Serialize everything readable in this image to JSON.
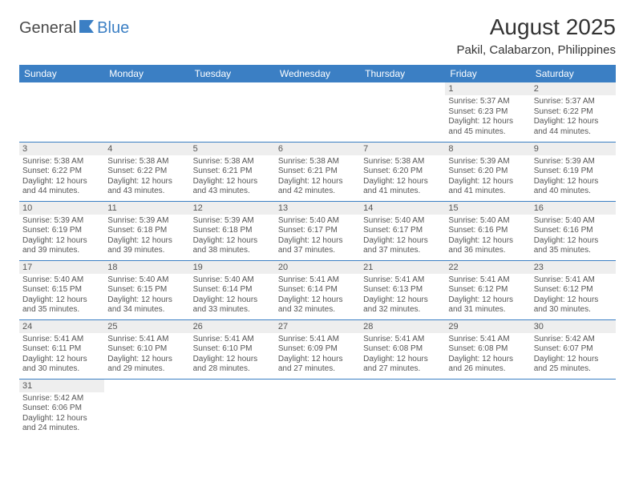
{
  "logo": {
    "part1": "General",
    "part2": "Blue"
  },
  "title": "August 2025",
  "location": "Pakil, Calabarzon, Philippines",
  "colors": {
    "header_bg": "#3b7fc4",
    "header_fg": "#ffffff",
    "daynum_bg": "#eeeeee",
    "border": "#3b7fc4",
    "text": "#555555"
  },
  "weekdays": [
    "Sunday",
    "Monday",
    "Tuesday",
    "Wednesday",
    "Thursday",
    "Friday",
    "Saturday"
  ],
  "weeks": [
    [
      null,
      null,
      null,
      null,
      null,
      {
        "n": "1",
        "sr": "Sunrise: 5:37 AM",
        "ss": "Sunset: 6:23 PM",
        "d1": "Daylight: 12 hours",
        "d2": "and 45 minutes."
      },
      {
        "n": "2",
        "sr": "Sunrise: 5:37 AM",
        "ss": "Sunset: 6:22 PM",
        "d1": "Daylight: 12 hours",
        "d2": "and 44 minutes."
      }
    ],
    [
      {
        "n": "3",
        "sr": "Sunrise: 5:38 AM",
        "ss": "Sunset: 6:22 PM",
        "d1": "Daylight: 12 hours",
        "d2": "and 44 minutes."
      },
      {
        "n": "4",
        "sr": "Sunrise: 5:38 AM",
        "ss": "Sunset: 6:22 PM",
        "d1": "Daylight: 12 hours",
        "d2": "and 43 minutes."
      },
      {
        "n": "5",
        "sr": "Sunrise: 5:38 AM",
        "ss": "Sunset: 6:21 PM",
        "d1": "Daylight: 12 hours",
        "d2": "and 43 minutes."
      },
      {
        "n": "6",
        "sr": "Sunrise: 5:38 AM",
        "ss": "Sunset: 6:21 PM",
        "d1": "Daylight: 12 hours",
        "d2": "and 42 minutes."
      },
      {
        "n": "7",
        "sr": "Sunrise: 5:38 AM",
        "ss": "Sunset: 6:20 PM",
        "d1": "Daylight: 12 hours",
        "d2": "and 41 minutes."
      },
      {
        "n": "8",
        "sr": "Sunrise: 5:39 AM",
        "ss": "Sunset: 6:20 PM",
        "d1": "Daylight: 12 hours",
        "d2": "and 41 minutes."
      },
      {
        "n": "9",
        "sr": "Sunrise: 5:39 AM",
        "ss": "Sunset: 6:19 PM",
        "d1": "Daylight: 12 hours",
        "d2": "and 40 minutes."
      }
    ],
    [
      {
        "n": "10",
        "sr": "Sunrise: 5:39 AM",
        "ss": "Sunset: 6:19 PM",
        "d1": "Daylight: 12 hours",
        "d2": "and 39 minutes."
      },
      {
        "n": "11",
        "sr": "Sunrise: 5:39 AM",
        "ss": "Sunset: 6:18 PM",
        "d1": "Daylight: 12 hours",
        "d2": "and 39 minutes."
      },
      {
        "n": "12",
        "sr": "Sunrise: 5:39 AM",
        "ss": "Sunset: 6:18 PM",
        "d1": "Daylight: 12 hours",
        "d2": "and 38 minutes."
      },
      {
        "n": "13",
        "sr": "Sunrise: 5:40 AM",
        "ss": "Sunset: 6:17 PM",
        "d1": "Daylight: 12 hours",
        "d2": "and 37 minutes."
      },
      {
        "n": "14",
        "sr": "Sunrise: 5:40 AM",
        "ss": "Sunset: 6:17 PM",
        "d1": "Daylight: 12 hours",
        "d2": "and 37 minutes."
      },
      {
        "n": "15",
        "sr": "Sunrise: 5:40 AM",
        "ss": "Sunset: 6:16 PM",
        "d1": "Daylight: 12 hours",
        "d2": "and 36 minutes."
      },
      {
        "n": "16",
        "sr": "Sunrise: 5:40 AM",
        "ss": "Sunset: 6:16 PM",
        "d1": "Daylight: 12 hours",
        "d2": "and 35 minutes."
      }
    ],
    [
      {
        "n": "17",
        "sr": "Sunrise: 5:40 AM",
        "ss": "Sunset: 6:15 PM",
        "d1": "Daylight: 12 hours",
        "d2": "and 35 minutes."
      },
      {
        "n": "18",
        "sr": "Sunrise: 5:40 AM",
        "ss": "Sunset: 6:15 PM",
        "d1": "Daylight: 12 hours",
        "d2": "and 34 minutes."
      },
      {
        "n": "19",
        "sr": "Sunrise: 5:40 AM",
        "ss": "Sunset: 6:14 PM",
        "d1": "Daylight: 12 hours",
        "d2": "and 33 minutes."
      },
      {
        "n": "20",
        "sr": "Sunrise: 5:41 AM",
        "ss": "Sunset: 6:14 PM",
        "d1": "Daylight: 12 hours",
        "d2": "and 32 minutes."
      },
      {
        "n": "21",
        "sr": "Sunrise: 5:41 AM",
        "ss": "Sunset: 6:13 PM",
        "d1": "Daylight: 12 hours",
        "d2": "and 32 minutes."
      },
      {
        "n": "22",
        "sr": "Sunrise: 5:41 AM",
        "ss": "Sunset: 6:12 PM",
        "d1": "Daylight: 12 hours",
        "d2": "and 31 minutes."
      },
      {
        "n": "23",
        "sr": "Sunrise: 5:41 AM",
        "ss": "Sunset: 6:12 PM",
        "d1": "Daylight: 12 hours",
        "d2": "and 30 minutes."
      }
    ],
    [
      {
        "n": "24",
        "sr": "Sunrise: 5:41 AM",
        "ss": "Sunset: 6:11 PM",
        "d1": "Daylight: 12 hours",
        "d2": "and 30 minutes."
      },
      {
        "n": "25",
        "sr": "Sunrise: 5:41 AM",
        "ss": "Sunset: 6:10 PM",
        "d1": "Daylight: 12 hours",
        "d2": "and 29 minutes."
      },
      {
        "n": "26",
        "sr": "Sunrise: 5:41 AM",
        "ss": "Sunset: 6:10 PM",
        "d1": "Daylight: 12 hours",
        "d2": "and 28 minutes."
      },
      {
        "n": "27",
        "sr": "Sunrise: 5:41 AM",
        "ss": "Sunset: 6:09 PM",
        "d1": "Daylight: 12 hours",
        "d2": "and 27 minutes."
      },
      {
        "n": "28",
        "sr": "Sunrise: 5:41 AM",
        "ss": "Sunset: 6:08 PM",
        "d1": "Daylight: 12 hours",
        "d2": "and 27 minutes."
      },
      {
        "n": "29",
        "sr": "Sunrise: 5:41 AM",
        "ss": "Sunset: 6:08 PM",
        "d1": "Daylight: 12 hours",
        "d2": "and 26 minutes."
      },
      {
        "n": "30",
        "sr": "Sunrise: 5:42 AM",
        "ss": "Sunset: 6:07 PM",
        "d1": "Daylight: 12 hours",
        "d2": "and 25 minutes."
      }
    ],
    [
      {
        "n": "31",
        "sr": "Sunrise: 5:42 AM",
        "ss": "Sunset: 6:06 PM",
        "d1": "Daylight: 12 hours",
        "d2": "and 24 minutes."
      },
      null,
      null,
      null,
      null,
      null,
      null
    ]
  ]
}
